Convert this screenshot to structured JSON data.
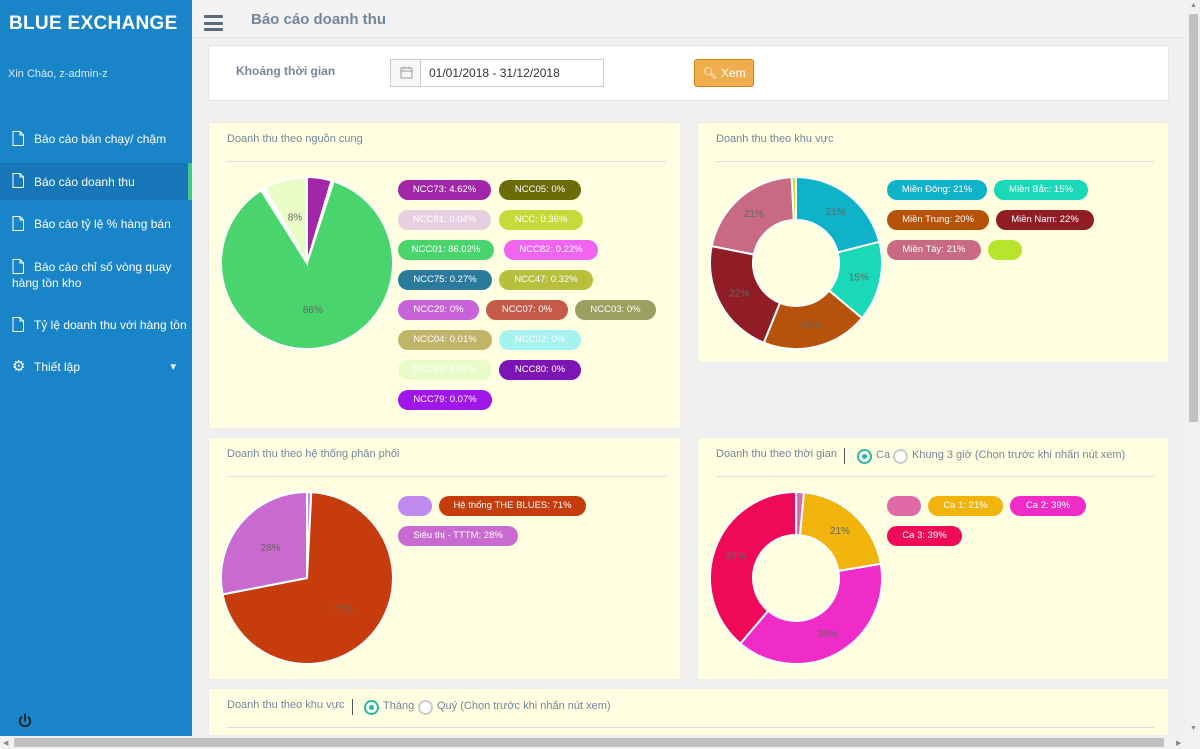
{
  "sidebar": {
    "brand": "BLUE EXCHANGE",
    "greeting": "Xin Chào, z-admin-z",
    "items": [
      {
        "label": "Báo cáo bán chạy/ chậm"
      },
      {
        "label": "Báo cáo doanh thu"
      },
      {
        "label": "Báo cáo tỷ lệ % hàng bán"
      },
      {
        "label": "Báo cáo chỉ số vòng quay hàng tồn kho"
      },
      {
        "label": "Tỷ lệ doanh thu với hàng tồn"
      }
    ],
    "settings_label": "Thiết lập",
    "settings_icon": "gear-icon",
    "accent_color": "#1a84c9"
  },
  "header": {
    "title": "Báo cáo doanh thu"
  },
  "filter": {
    "label": "Khoảng thời gian",
    "date_range": "01/01/2018 - 31/12/2018",
    "view_button": "Xem",
    "button_color": "#f0ad4e"
  },
  "panels": {
    "supplier": {
      "title": "Doanh thu theo nguồn cung"
    },
    "region": {
      "title": "Doanh thu theo khu vực"
    },
    "distribution": {
      "title": "Doanh thu theo hệ thống phân phối"
    },
    "time": {
      "title": "Doanh thu theo thời gian",
      "radio_shift": "Ca",
      "radio_block": "Khung 3 giờ (Chọn trước khi nhấn nút xem)"
    },
    "region_period": {
      "title": "Doanh thu theo khu vực",
      "radio_month": "Tháng",
      "radio_quarter": "Quý (Chọn trước khi nhấn nút xem)"
    }
  },
  "chart_data": [
    {
      "type": "pie",
      "title": "Doanh thu theo nguồn cung",
      "slices": [
        {
          "name": "NCC73",
          "value": 4.62,
          "legend": "NCC73: 4.62%",
          "color": "#a226a8"
        },
        {
          "name": "NCC05",
          "value": 0,
          "legend": "NCC05: 0%",
          "color": "#6b6b0a"
        },
        {
          "name": "NCC81",
          "value": 0.04,
          "legend": "NCC81: 0.04%",
          "color": "#e6cfe0"
        },
        {
          "name": "NCC",
          "value": 0.36,
          "legend": "NCC: 0.36%",
          "color": "#c8d93a"
        },
        {
          "name": "NCC01",
          "value": 86.02,
          "legend": "NCC01: 86.02%",
          "color": "#49d46d"
        },
        {
          "name": "NCC82",
          "value": 0.22,
          "legend": "NCC82: 0.22%",
          "color": "#f064f0"
        },
        {
          "name": "NCC75",
          "value": 0.27,
          "legend": "NCC75: 0.27%",
          "color": "#2a7a9c"
        },
        {
          "name": "NCC47",
          "value": 0.32,
          "legend": "NCC47: 0.32%",
          "color": "#b7bf3c"
        },
        {
          "name": "NCC29",
          "value": 0,
          "legend": "NCC29: 0%",
          "color": "#c862d8"
        },
        {
          "name": "NCC07",
          "value": 0,
          "legend": "NCC07: 0%",
          "color": "#c55a4a"
        },
        {
          "name": "NCC03",
          "value": 0,
          "legend": "NCC03: 0%",
          "color": "#9aa060"
        },
        {
          "name": "NCC04",
          "value": 0.01,
          "legend": "NCC04: 0.01%",
          "color": "#bfb46a"
        },
        {
          "name": "NCC02",
          "value": 0,
          "legend": "NCC02: 0%",
          "color": "#a6f2ee"
        },
        {
          "name": "NCC83",
          "value": 8.07,
          "legend": "NCC83: 8.07%",
          "color": "#e8fcc8"
        },
        {
          "name": "NCC80",
          "value": 0,
          "legend": "NCC80: 0%",
          "color": "#7d14b4"
        },
        {
          "name": "NCC79",
          "value": 0.07,
          "legend": "NCC79: 0.07%",
          "color": "#a016ea"
        }
      ],
      "slice_labels": [
        {
          "text": "86%",
          "slice": "NCC01"
        },
        {
          "text": "8%",
          "slice": "NCC83"
        }
      ]
    },
    {
      "type": "pie",
      "variant": "doughnut",
      "title": "Doanh thu theo khu vực",
      "slices": [
        {
          "name": "Miền Đông",
          "value": 21,
          "legend": "Miền Đông: 21%",
          "color": "#10b2ca"
        },
        {
          "name": "Miền Bắc",
          "value": 15,
          "legend": "Miền Bắc: 15%",
          "color": "#19d9b8"
        },
        {
          "name": "Miền Trung",
          "value": 20,
          "legend": "Miền Trung: 20%",
          "color": "#b6520a"
        },
        {
          "name": "Miền Nam",
          "value": 22,
          "legend": "Miền Nam: 22%",
          "color": "#901d26"
        },
        {
          "name": "Miền Tây",
          "value": 21,
          "legend": "Miền Tây: 21%",
          "color": "#c86a83"
        },
        {
          "name": "",
          "value": 0.8,
          "legend": "",
          "color": "#b8e52c"
        }
      ],
      "slice_labels": [
        {
          "text": "21%",
          "slice": "Miền Đông"
        },
        {
          "text": "15%",
          "slice": "Miền Bắc"
        },
        {
          "text": "20%",
          "slice": "Miền Trung"
        },
        {
          "text": "22%",
          "slice": "Miền Nam"
        },
        {
          "text": "21%",
          "slice": "Miền Tây"
        }
      ]
    },
    {
      "type": "pie",
      "title": "Doanh thu theo hệ thống phân phối",
      "slices": [
        {
          "name": "",
          "value": 0.8,
          "legend": "",
          "color": "#c08af0"
        },
        {
          "name": "Hệ thống THE BLUES",
          "value": 71,
          "legend": "Hệ thống THE BLUES: 71%",
          "color": "#c63c0c"
        },
        {
          "name": "Siêu thị - TTTM",
          "value": 28,
          "legend": "Siêu thị - TTTM: 28%",
          "color": "#c86ad0"
        }
      ],
      "slice_labels": [
        {
          "text": "71%",
          "slice": "Hệ thống THE BLUES"
        },
        {
          "text": "28%",
          "slice": "Siêu thị - TTTM"
        }
      ]
    },
    {
      "type": "pie",
      "variant": "doughnut",
      "title": "Doanh thu theo thời gian",
      "slices": [
        {
          "name": "",
          "value": 1.5,
          "legend": "",
          "color": "#e06aa8"
        },
        {
          "name": "Ca 1",
          "value": 21,
          "legend": "Ca 1: 21%",
          "color": "#f0b40c"
        },
        {
          "name": "Ca 2",
          "value": 39,
          "legend": "Ca 2: 39%",
          "color": "#f02cc8"
        },
        {
          "name": "Ca 3",
          "value": 39,
          "legend": "Ca 3: 39%",
          "color": "#ee0a58"
        }
      ],
      "slice_labels": [
        {
          "text": "21%",
          "slice": "Ca 1"
        },
        {
          "text": "39%",
          "slice": "Ca 2"
        },
        {
          "text": "39%",
          "slice": "Ca 3"
        }
      ]
    }
  ]
}
